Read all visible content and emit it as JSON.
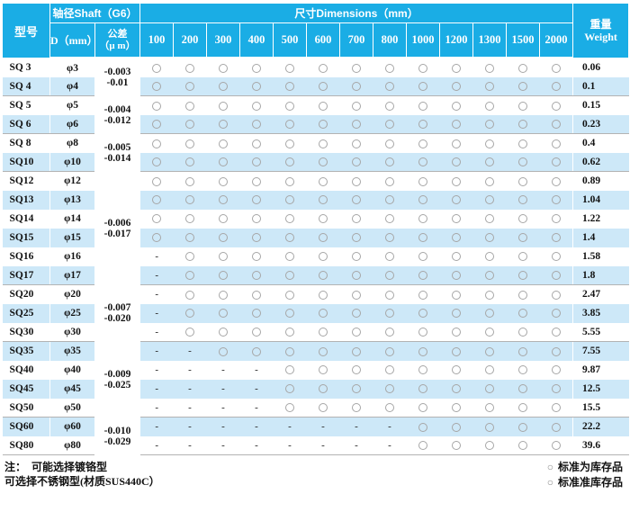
{
  "colors": {
    "header_bg": "#1aade5",
    "row_alt_bg": "#cde8f8",
    "row_bg": "#ffffff",
    "group_line": "#b3b3b3",
    "circle_border": "#a6a6a6",
    "header_text": "#ffffff",
    "body_text": "#111111"
  },
  "header": {
    "model": "型号",
    "shaft_group": "轴径Shaft（G6）",
    "d_col": "D（mm）",
    "tol_line1": "公差",
    "tol_line2": "（μ m）",
    "dims_group": "尺寸Dimensions（mm）",
    "dim_cols": [
      "100",
      "200",
      "300",
      "400",
      "500",
      "600",
      "700",
      "800",
      "1000",
      "1200",
      "1300",
      "1500",
      "2000"
    ],
    "weight_line1": "重量",
    "weight_line2": "Weight"
  },
  "tolerance_groups": [
    {
      "start": 0,
      "span": 2,
      "lines": [
        "-0.003",
        "-0.01"
      ]
    },
    {
      "start": 2,
      "span": 2,
      "lines": [
        "-0.004",
        "-0.012"
      ]
    },
    {
      "start": 4,
      "span": 2,
      "lines": [
        "-0.005",
        "-0.014"
      ]
    },
    {
      "start": 6,
      "span": 6,
      "lines": [
        "-0.006",
        "-0.017"
      ]
    },
    {
      "start": 12,
      "span": 3,
      "lines": [
        "-0.007",
        "-0.020"
      ]
    },
    {
      "start": 15,
      "span": 4,
      "lines": [
        "-0.009",
        "-0.025"
      ]
    },
    {
      "start": 19,
      "span": 2,
      "lines": [
        "-0.010",
        "-0.029"
      ]
    }
  ],
  "rows": [
    {
      "model": "SQ 3",
      "dia": "φ3",
      "marks": "ooooooooooooo",
      "weight": "0.06"
    },
    {
      "model": "SQ 4",
      "dia": "φ4",
      "marks": "ooooooooooooo",
      "weight": "0.1"
    },
    {
      "model": "SQ 5",
      "dia": "φ5",
      "marks": "ooooooooooooo",
      "weight": "0.15"
    },
    {
      "model": "SQ 6",
      "dia": "φ6",
      "marks": "ooooooooooooo",
      "weight": "0.23"
    },
    {
      "model": "SQ 8",
      "dia": "φ8",
      "marks": "ooooooooooooo",
      "weight": "0.4"
    },
    {
      "model": "SQ10",
      "dia": "φ10",
      "marks": "ooooooooooooo",
      "weight": "0.62"
    },
    {
      "model": "SQ12",
      "dia": "φ12",
      "marks": "ooooooooooooo",
      "weight": "0.89"
    },
    {
      "model": "SQ13",
      "dia": "φ13",
      "marks": "ooooooooooooo",
      "weight": "1.04"
    },
    {
      "model": "SQ14",
      "dia": "φ14",
      "marks": "ooooooooooooo",
      "weight": "1.22"
    },
    {
      "model": "SQ15",
      "dia": "φ15",
      "marks": "ooooooooooooo",
      "weight": "1.4"
    },
    {
      "model": "SQ16",
      "dia": "φ16",
      "marks": "-oooooooooooo",
      "weight": "1.58"
    },
    {
      "model": "SQ17",
      "dia": "φ17",
      "marks": "-oooooooooooo",
      "weight": "1.8"
    },
    {
      "model": "SQ20",
      "dia": "φ20",
      "marks": "-oooooooooooo",
      "weight": "2.47"
    },
    {
      "model": "SQ25",
      "dia": "φ25",
      "marks": "-oooooooooooo",
      "weight": "3.85"
    },
    {
      "model": "SQ30",
      "dia": "φ30",
      "marks": "-oooooooooooo",
      "weight": "5.55"
    },
    {
      "model": "SQ35",
      "dia": "φ35",
      "marks": "--ooooooooooo",
      "weight": "7.55"
    },
    {
      "model": "SQ40",
      "dia": "φ40",
      "marks": "----ooooooooo",
      "weight": "9.87"
    },
    {
      "model": "SQ45",
      "dia": "φ45",
      "marks": "----ooooooooo",
      "weight": "12.5"
    },
    {
      "model": "SQ50",
      "dia": "φ50",
      "marks": "----ooooooooo",
      "weight": "15.5"
    },
    {
      "model": "SQ60",
      "dia": "φ60",
      "marks": "--------ooooo",
      "weight": "22.2"
    },
    {
      "model": "SQ80",
      "dia": "φ80",
      "marks": "--------ooooo",
      "weight": "39.6"
    }
  ],
  "footer": {
    "note_prefix": "注：",
    "note_line1": "可能选择镀铬型",
    "note_line2": "可选择不锈钢型(材质SUS440C）",
    "legend_circle": "○",
    "legend1": "标准为库存品",
    "legend2": "标准准库存品"
  }
}
